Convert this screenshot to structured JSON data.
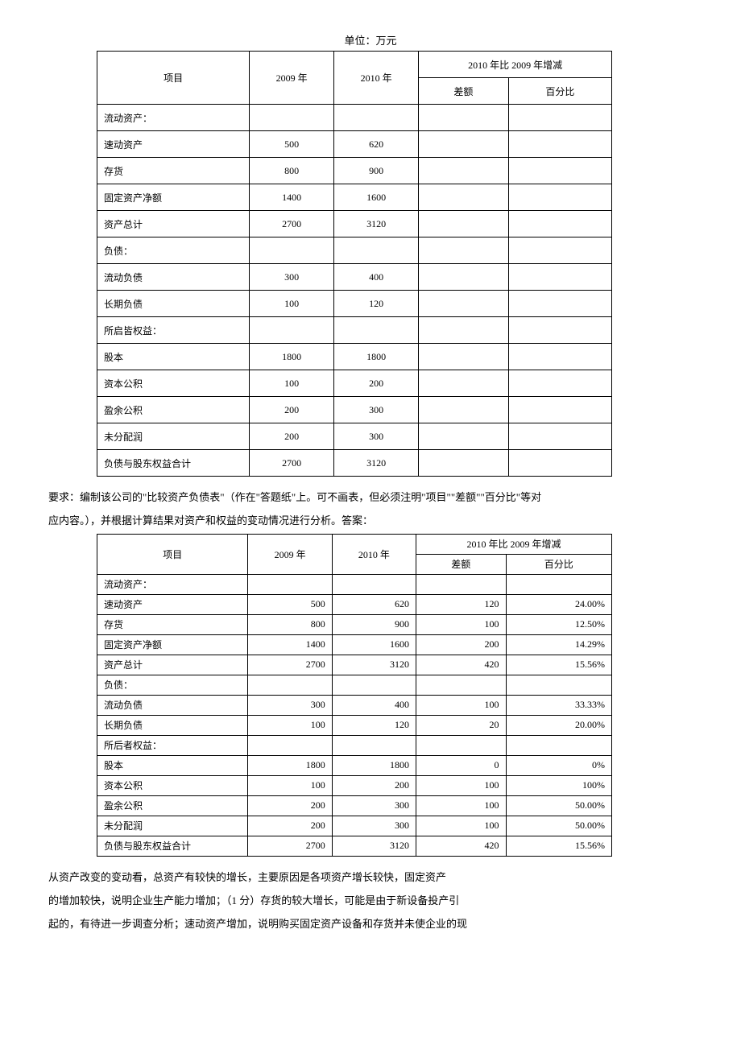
{
  "unit_label": "单位：万元",
  "headers": {
    "item": "项目",
    "y2009": "2009 年",
    "y2010": "2010 年",
    "change_header": "2010 年比 2009 年增减",
    "diff": "差额",
    "pct": "百分比"
  },
  "para1": "要求：编制该公司的\"比较资产负债表\"（作在\"答题纸\"上。可不画表，但必须注明\"项目\"\"差额\"\"百分比\"等对",
  "para2": "应内容。），并根据计算结果对资产和权益的变动情况进行分析。答案：",
  "para3": "从资产改变的变动看，总资产有较快的增长，主要原因是各项资产增长较快，固定资产",
  "para4": "的增加较快，说明企业生产能力增加；（1 分）存货的较大增长，可能是由于新设备投产引",
  "para5": "起的，有待进一步调查分析；速动资产增加，说明购买固定资产设备和存货并未使企业的现",
  "t1": {
    "rows": [
      {
        "item": "流动资产：",
        "y1": "",
        "y2": ""
      },
      {
        "item": "速动资产",
        "y1": "500",
        "y2": "620"
      },
      {
        "item": "存货",
        "y1": "800",
        "y2": "900"
      },
      {
        "item": "固定资产净额",
        "y1": "1400",
        "y2": "1600"
      },
      {
        "item": "资产总计",
        "y1": "2700",
        "y2": "3120"
      },
      {
        "item": "负债：",
        "y1": "",
        "y2": ""
      },
      {
        "item": "流动负债",
        "y1": "300",
        "y2": "400"
      },
      {
        "item": "长期负债",
        "y1": "100",
        "y2": "120"
      },
      {
        "item": "所启皆权益：",
        "y1": "",
        "y2": ""
      },
      {
        "item": "股本",
        "y1": "1800",
        "y2": "1800"
      },
      {
        "item": "资本公积",
        "y1": "100",
        "y2": "200"
      },
      {
        "item": "盈余公积",
        "y1": "200",
        "y2": "300"
      },
      {
        "item": "未分配润",
        "y1": "200",
        "y2": "300"
      },
      {
        "item": "负债与股东权益合计",
        "y1": "2700",
        "y2": "3120"
      }
    ]
  },
  "t2": {
    "rows": [
      {
        "item": "流动资产：",
        "y1": "",
        "y2": "",
        "d": "",
        "p": "",
        "indent": false
      },
      {
        "item": "速动资产",
        "y1": "500",
        "y2": "620",
        "d": "120",
        "p": "24.00%",
        "indent": true
      },
      {
        "item": "存货",
        "y1": "800",
        "y2": "900",
        "d": "100",
        "p": "12.50%",
        "indent": true
      },
      {
        "item": "固定资产净额",
        "y1": "1400",
        "y2": "1600",
        "d": "200",
        "p": "14.29%",
        "indent": true
      },
      {
        "item": "资产总计",
        "y1": "2700",
        "y2": "3120",
        "d": "420",
        "p": "15.56%",
        "indent": false
      },
      {
        "item": "负债：",
        "y1": "",
        "y2": "",
        "d": "",
        "p": "",
        "indent": false
      },
      {
        "item": "流动负债",
        "y1": "300",
        "y2": "400",
        "d": "100",
        "p": "33.33%",
        "indent": true
      },
      {
        "item": "长期负债",
        "y1": "100",
        "y2": "120",
        "d": "20",
        "p": "20.00%",
        "indent": true
      },
      {
        "item": "所后者权益：",
        "y1": "",
        "y2": "",
        "d": "",
        "p": "",
        "indent": false
      },
      {
        "item": "股本",
        "y1": "1800",
        "y2": "1800",
        "d": "0",
        "p": "0%",
        "indent": true
      },
      {
        "item": "资本公积",
        "y1": "100",
        "y2": "200",
        "d": "100",
        "p": "100%",
        "indent": true
      },
      {
        "item": "盈余公积",
        "y1": "200",
        "y2": "300",
        "d": "100",
        "p": "50.00%",
        "indent": true
      },
      {
        "item": "未分配润",
        "y1": "200",
        "y2": "300",
        "d": "100",
        "p": "50.00%",
        "indent": true
      },
      {
        "item": "负债与股东权益合计",
        "y1": "2700",
        "y2": "3120",
        "d": "420",
        "p": "15.56%",
        "indent": false
      }
    ]
  }
}
